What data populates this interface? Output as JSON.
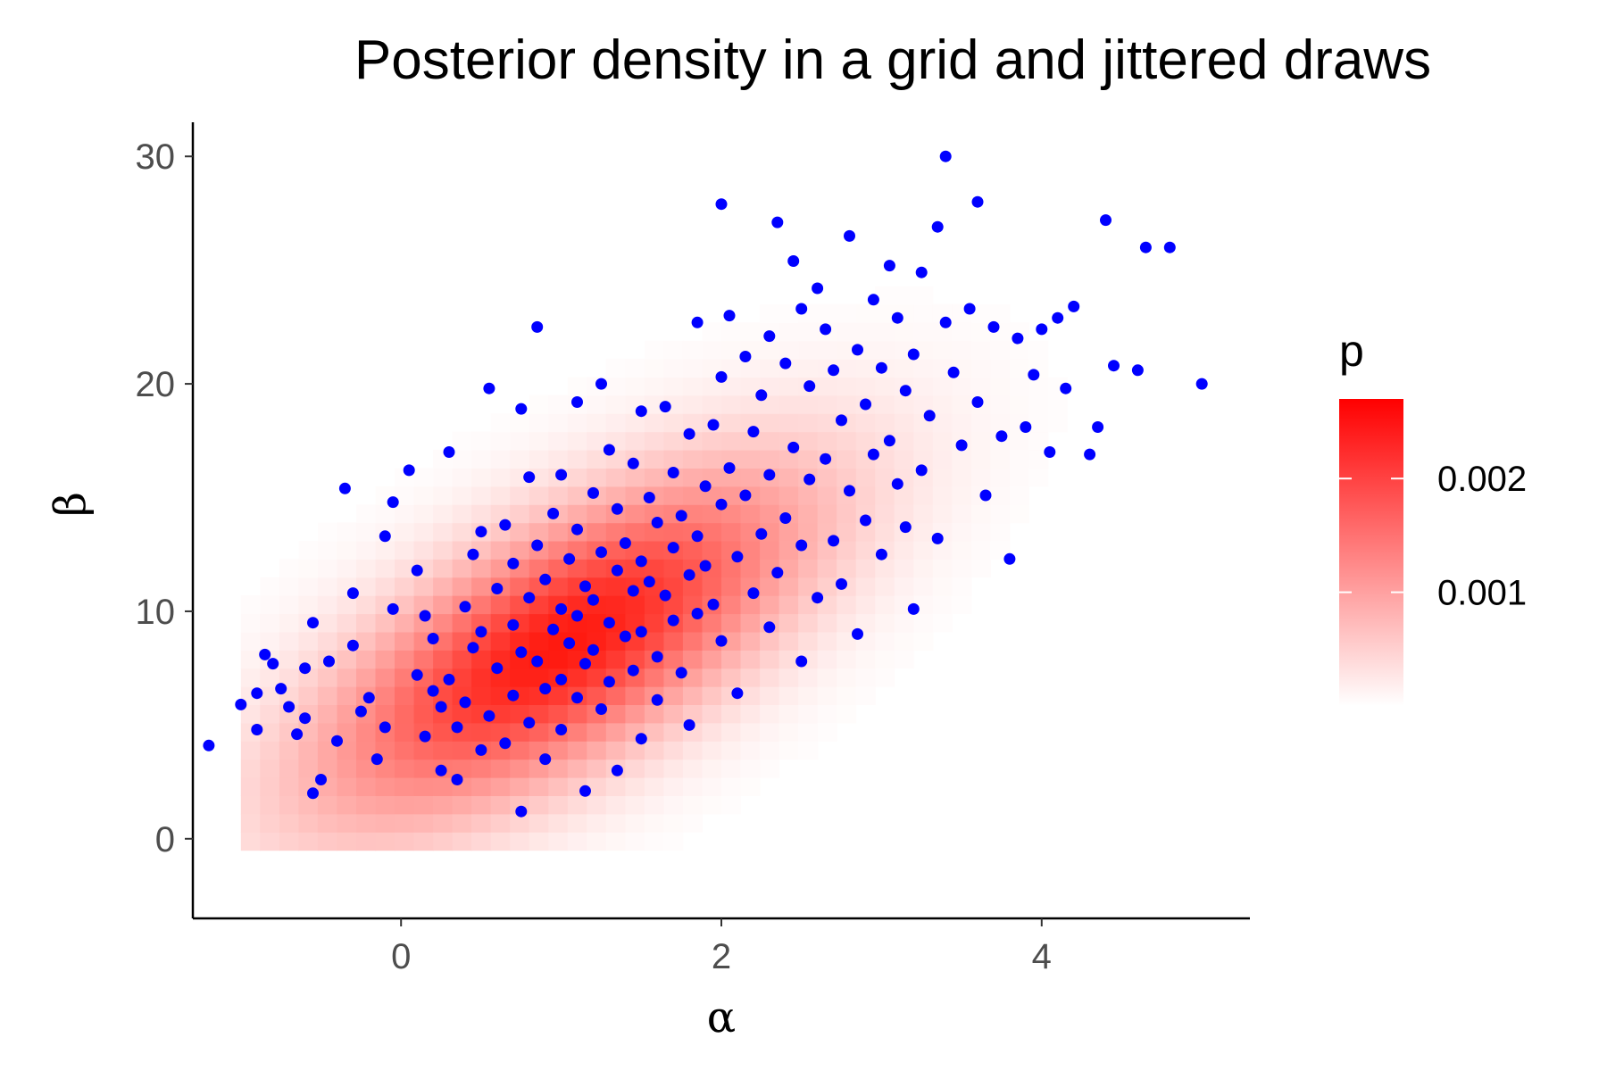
{
  "chart_data": {
    "type": "scatter",
    "title": "Posterior density in a grid and jittered draws",
    "xlabel": "α",
    "ylabel": "β",
    "xlim": [
      -1.3,
      5.3
    ],
    "ylim": [
      -3.5,
      31.5
    ],
    "x_ticks": [
      0,
      2,
      4
    ],
    "y_ticks": [
      0,
      10,
      20,
      30
    ],
    "grid": false,
    "legend": {
      "title": "p",
      "placement": "right",
      "ticks": [
        0.001,
        0.002
      ],
      "tick_labels": [
        "0.001",
        "0.002"
      ],
      "range": [
        0.0,
        0.0027
      ],
      "colors": [
        "#ffffff",
        "#ff0000"
      ]
    },
    "density_grid": {
      "description_of_values": "posterior density p on a regular alpha/beta grid",
      "mode": [
        1.0,
        8.5
      ],
      "peak_p": 0.0027
    },
    "point_color": "#0000ff",
    "points": [
      [
        -1.2,
        4.1
      ],
      [
        -1.0,
        5.9
      ],
      [
        -0.9,
        4.8
      ],
      [
        -0.9,
        6.4
      ],
      [
        -0.85,
        8.1
      ],
      [
        -0.8,
        7.7
      ],
      [
        -0.75,
        6.6
      ],
      [
        -0.7,
        5.8
      ],
      [
        -0.65,
        4.6
      ],
      [
        -0.6,
        5.3
      ],
      [
        -0.6,
        7.5
      ],
      [
        -0.55,
        9.5
      ],
      [
        -0.55,
        2.0
      ],
      [
        -0.5,
        2.6
      ],
      [
        -0.45,
        7.8
      ],
      [
        -0.4,
        4.3
      ],
      [
        -0.35,
        15.4
      ],
      [
        -0.3,
        10.8
      ],
      [
        -0.3,
        8.5
      ],
      [
        -0.25,
        5.6
      ],
      [
        -0.2,
        6.2
      ],
      [
        -0.15,
        3.5
      ],
      [
        -0.1,
        4.9
      ],
      [
        -0.1,
        13.3
      ],
      [
        -0.05,
        14.8
      ],
      [
        -0.05,
        10.1
      ],
      [
        0.05,
        16.2
      ],
      [
        0.1,
        11.8
      ],
      [
        0.1,
        7.2
      ],
      [
        0.15,
        9.8
      ],
      [
        0.15,
        4.5
      ],
      [
        0.2,
        6.5
      ],
      [
        0.2,
        8.8
      ],
      [
        0.25,
        3.0
      ],
      [
        0.25,
        5.8
      ],
      [
        0.3,
        17.0
      ],
      [
        0.3,
        7.0
      ],
      [
        0.35,
        2.6
      ],
      [
        0.35,
        4.9
      ],
      [
        0.4,
        10.2
      ],
      [
        0.4,
        6.0
      ],
      [
        0.45,
        12.5
      ],
      [
        0.45,
        8.4
      ],
      [
        0.5,
        13.5
      ],
      [
        0.5,
        9.1
      ],
      [
        0.5,
        3.9
      ],
      [
        0.55,
        19.8
      ],
      [
        0.55,
        5.4
      ],
      [
        0.6,
        11.0
      ],
      [
        0.6,
        7.5
      ],
      [
        0.65,
        13.8
      ],
      [
        0.65,
        4.2
      ],
      [
        0.7,
        9.4
      ],
      [
        0.7,
        12.1
      ],
      [
        0.7,
        6.3
      ],
      [
        0.75,
        18.9
      ],
      [
        0.75,
        8.2
      ],
      [
        0.75,
        1.2
      ],
      [
        0.8,
        15.9
      ],
      [
        0.8,
        10.6
      ],
      [
        0.8,
        5.1
      ],
      [
        0.85,
        22.5
      ],
      [
        0.85,
        12.9
      ],
      [
        0.85,
        7.8
      ],
      [
        0.9,
        11.4
      ],
      [
        0.9,
        6.6
      ],
      [
        0.9,
        3.5
      ],
      [
        0.95,
        14.3
      ],
      [
        0.95,
        9.2
      ],
      [
        1.0,
        16.0
      ],
      [
        1.0,
        10.1
      ],
      [
        1.0,
        7.0
      ],
      [
        1.0,
        4.8
      ],
      [
        1.05,
        12.3
      ],
      [
        1.05,
        8.6
      ],
      [
        1.1,
        19.2
      ],
      [
        1.1,
        13.6
      ],
      [
        1.1,
        9.8
      ],
      [
        1.1,
        6.2
      ],
      [
        1.15,
        11.1
      ],
      [
        1.15,
        7.7
      ],
      [
        1.15,
        2.1
      ],
      [
        1.2,
        15.2
      ],
      [
        1.2,
        10.5
      ],
      [
        1.2,
        8.3
      ],
      [
        1.25,
        20.0
      ],
      [
        1.25,
        12.6
      ],
      [
        1.25,
        5.7
      ],
      [
        1.3,
        17.1
      ],
      [
        1.3,
        9.5
      ],
      [
        1.3,
        6.9
      ],
      [
        1.35,
        14.5
      ],
      [
        1.35,
        11.8
      ],
      [
        1.35,
        3.0
      ],
      [
        1.4,
        13.0
      ],
      [
        1.4,
        8.9
      ],
      [
        1.45,
        16.5
      ],
      [
        1.45,
        10.9
      ],
      [
        1.45,
        7.4
      ],
      [
        1.5,
        18.8
      ],
      [
        1.5,
        12.2
      ],
      [
        1.5,
        9.1
      ],
      [
        1.5,
        4.4
      ],
      [
        1.55,
        15.0
      ],
      [
        1.55,
        11.3
      ],
      [
        1.6,
        13.9
      ],
      [
        1.6,
        8.0
      ],
      [
        1.6,
        6.1
      ],
      [
        1.65,
        19.0
      ],
      [
        1.65,
        10.7
      ],
      [
        1.7,
        16.1
      ],
      [
        1.7,
        12.8
      ],
      [
        1.7,
        9.6
      ],
      [
        1.75,
        14.2
      ],
      [
        1.75,
        7.3
      ],
      [
        1.8,
        17.8
      ],
      [
        1.8,
        11.6
      ],
      [
        1.8,
        5.0
      ],
      [
        1.85,
        22.7
      ],
      [
        1.85,
        13.3
      ],
      [
        1.85,
        9.9
      ],
      [
        1.9,
        15.5
      ],
      [
        1.9,
        12.0
      ],
      [
        1.95,
        18.2
      ],
      [
        1.95,
        10.3
      ],
      [
        2.0,
        27.9
      ],
      [
        2.0,
        20.3
      ],
      [
        2.0,
        14.7
      ],
      [
        2.0,
        8.7
      ],
      [
        2.05,
        23.0
      ],
      [
        2.05,
        16.3
      ],
      [
        2.1,
        12.4
      ],
      [
        2.1,
        6.4
      ],
      [
        2.15,
        21.2
      ],
      [
        2.15,
        15.1
      ],
      [
        2.2,
        17.9
      ],
      [
        2.2,
        10.8
      ],
      [
        2.25,
        19.5
      ],
      [
        2.25,
        13.4
      ],
      [
        2.3,
        22.1
      ],
      [
        2.3,
        16.0
      ],
      [
        2.3,
        9.3
      ],
      [
        2.35,
        27.1
      ],
      [
        2.35,
        11.7
      ],
      [
        2.4,
        20.9
      ],
      [
        2.4,
        14.1
      ],
      [
        2.45,
        25.4
      ],
      [
        2.45,
        17.2
      ],
      [
        2.5,
        23.3
      ],
      [
        2.5,
        12.9
      ],
      [
        2.5,
        7.8
      ],
      [
        2.55,
        19.9
      ],
      [
        2.55,
        15.8
      ],
      [
        2.6,
        24.2
      ],
      [
        2.6,
        10.6
      ],
      [
        2.65,
        22.4
      ],
      [
        2.65,
        16.7
      ],
      [
        2.7,
        20.6
      ],
      [
        2.7,
        13.1
      ],
      [
        2.75,
        18.4
      ],
      [
        2.75,
        11.2
      ],
      [
        2.8,
        26.5
      ],
      [
        2.8,
        15.3
      ],
      [
        2.85,
        21.5
      ],
      [
        2.85,
        9.0
      ],
      [
        2.9,
        19.1
      ],
      [
        2.9,
        14.0
      ],
      [
        2.95,
        23.7
      ],
      [
        2.95,
        16.9
      ],
      [
        3.0,
        20.7
      ],
      [
        3.0,
        12.5
      ],
      [
        3.05,
        25.2
      ],
      [
        3.05,
        17.5
      ],
      [
        3.1,
        22.9
      ],
      [
        3.1,
        15.6
      ],
      [
        3.15,
        19.7
      ],
      [
        3.15,
        13.7
      ],
      [
        3.2,
        21.3
      ],
      [
        3.2,
        10.1
      ],
      [
        3.25,
        24.9
      ],
      [
        3.25,
        16.2
      ],
      [
        3.3,
        18.6
      ],
      [
        3.35,
        26.9
      ],
      [
        3.35,
        13.2
      ],
      [
        3.4,
        30.0
      ],
      [
        3.4,
        22.7
      ],
      [
        3.45,
        20.5
      ],
      [
        3.5,
        17.3
      ],
      [
        3.55,
        23.3
      ],
      [
        3.6,
        28.0
      ],
      [
        3.6,
        19.2
      ],
      [
        3.65,
        15.1
      ],
      [
        3.7,
        22.5
      ],
      [
        3.75,
        17.7
      ],
      [
        3.8,
        12.3
      ],
      [
        3.85,
        22.0
      ],
      [
        3.9,
        18.1
      ],
      [
        3.95,
        20.4
      ],
      [
        4.0,
        22.4
      ],
      [
        4.05,
        17.0
      ],
      [
        4.1,
        22.9
      ],
      [
        4.15,
        19.8
      ],
      [
        4.2,
        23.4
      ],
      [
        4.3,
        16.9
      ],
      [
        4.35,
        18.1
      ],
      [
        4.4,
        27.2
      ],
      [
        4.45,
        20.8
      ],
      [
        4.6,
        20.6
      ],
      [
        4.65,
        26.0
      ],
      [
        4.8,
        26.0
      ],
      [
        5.0,
        20.0
      ]
    ]
  }
}
